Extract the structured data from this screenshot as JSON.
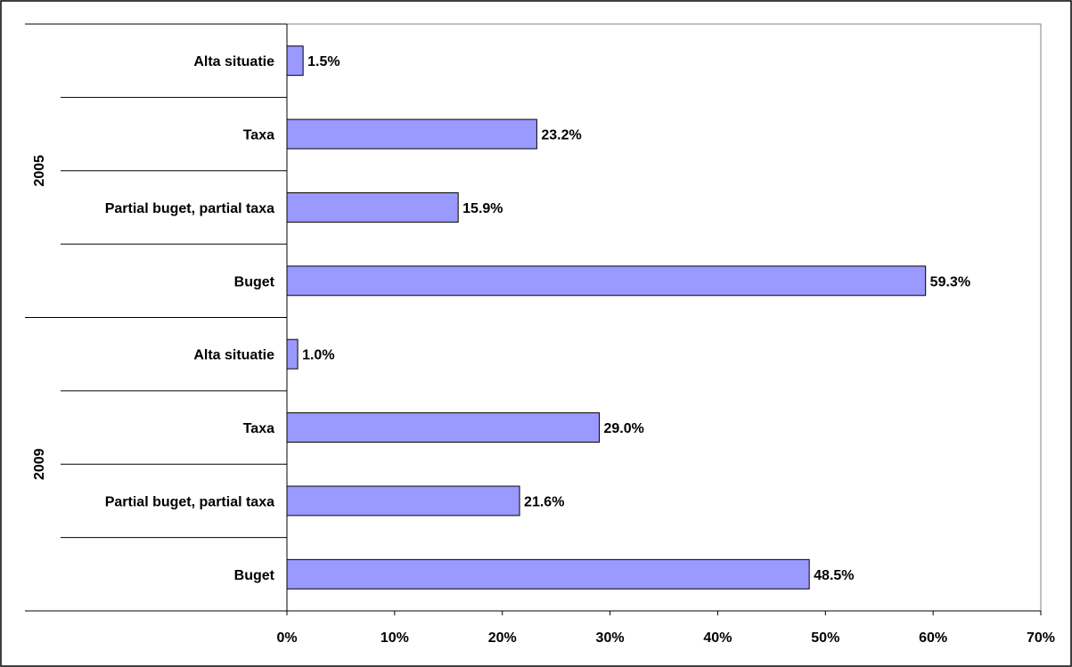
{
  "chart_data": {
    "type": "bar",
    "orientation": "horizontal",
    "groups": [
      {
        "name": "2009",
        "categories": [
          "Buget",
          "Partial buget, partial taxa",
          "Taxa",
          "Alta situatie"
        ],
        "values": [
          48.5,
          21.6,
          29.0,
          1.0
        ],
        "value_labels": [
          "48.5%",
          "21.6%",
          "29.0%",
          "1.0%"
        ]
      },
      {
        "name": "2005",
        "categories": [
          "Buget",
          "Partial buget, partial taxa",
          "Taxa",
          "Alta situatie"
        ],
        "values": [
          59.3,
          15.9,
          23.2,
          1.5
        ],
        "value_labels": [
          "59.3%",
          "15.9%",
          "23.2%",
          "1.5%"
        ]
      }
    ],
    "xlim": [
      0,
      70
    ],
    "xticks": [
      0,
      10,
      20,
      30,
      40,
      50,
      60,
      70
    ],
    "xtick_labels": [
      "0%",
      "10%",
      "20%",
      "30%",
      "40%",
      "50%",
      "60%",
      "70%"
    ],
    "grid": false,
    "legend": "none",
    "bar_color": "#9999ff"
  }
}
